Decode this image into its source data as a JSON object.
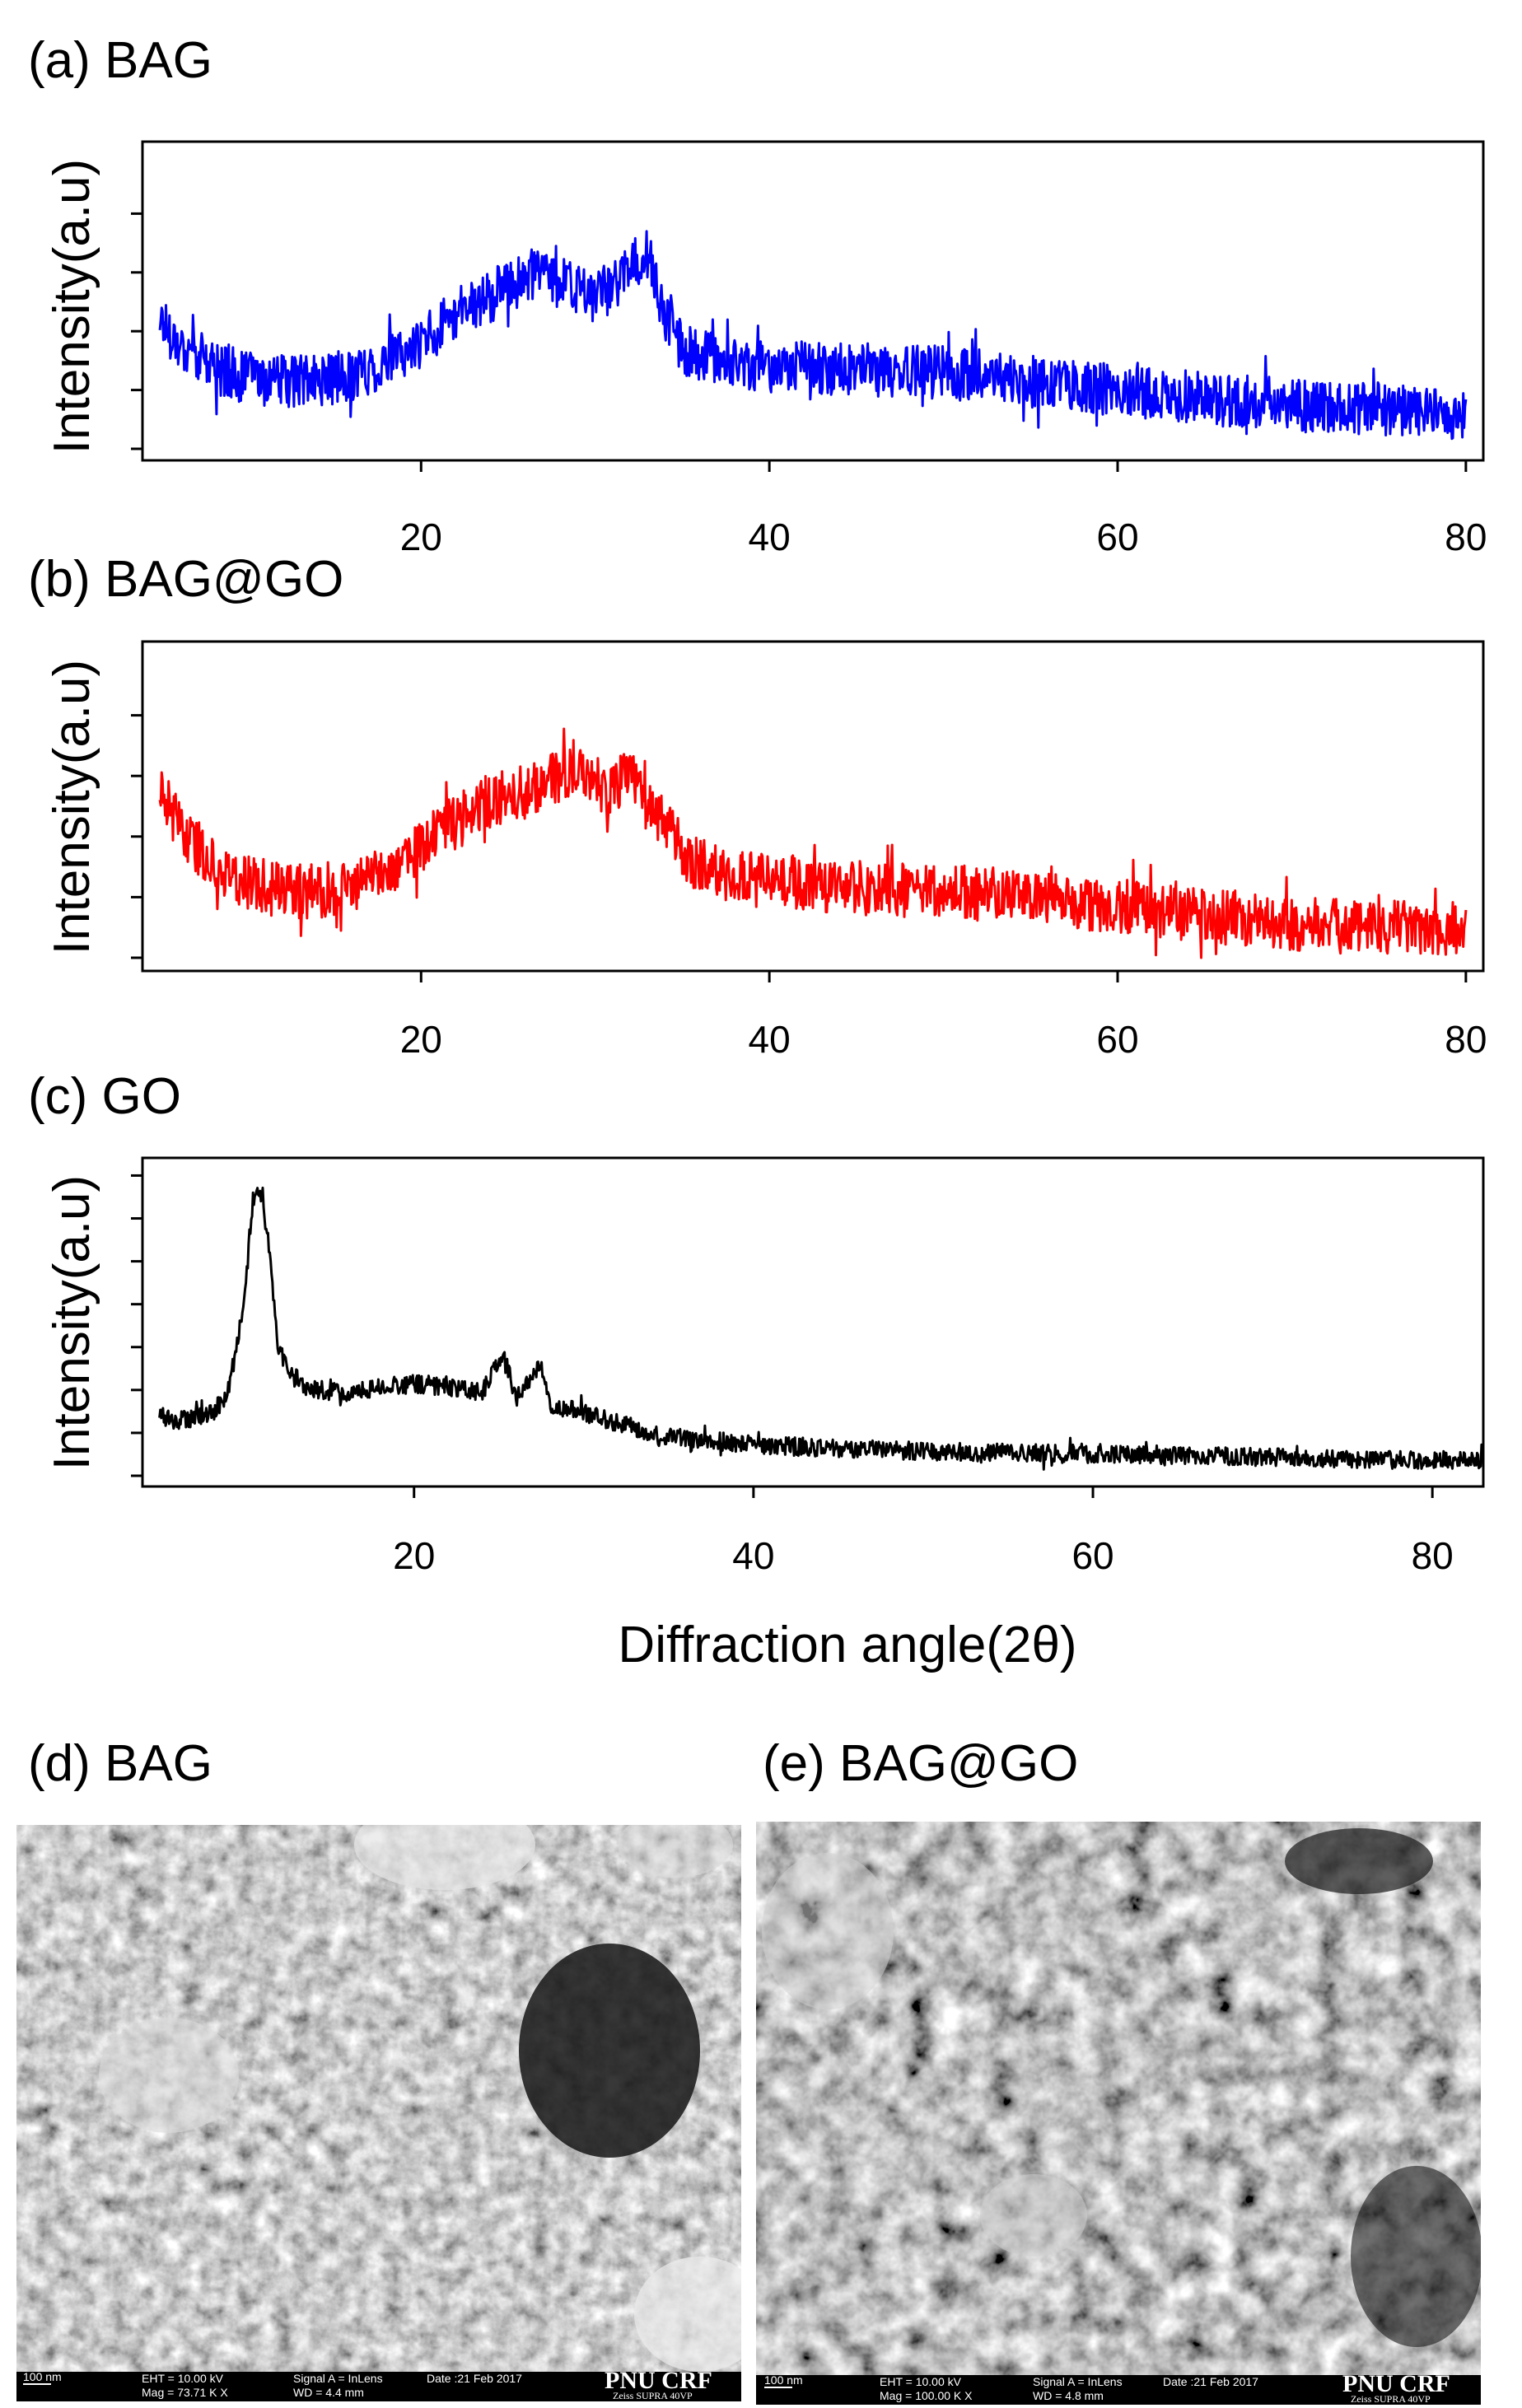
{
  "figure": {
    "xlabel": "Diffraction angle(2θ)",
    "ylabel": "Intensity(a.u)"
  },
  "chart_data": [
    {
      "type": "line",
      "panel": "(a) BAG",
      "title": "(a) BAG",
      "color": "#0000ff",
      "xlabel": "",
      "ylabel": "Intensity(a.u)",
      "xlim": [
        4,
        81
      ],
      "xticks": [
        20,
        40,
        60,
        80
      ],
      "ylim": [
        0,
        100
      ],
      "yticks": [
        0,
        20,
        40,
        60,
        80
      ],
      "noise": 9,
      "series": [
        {
          "name": "BAG",
          "x": [
            5,
            6,
            8,
            10,
            12,
            14,
            16,
            18,
            20,
            22,
            24,
            26,
            27,
            28,
            30,
            31,
            32,
            33,
            34,
            35,
            36,
            38,
            40,
            45,
            50,
            55,
            60,
            65,
            70,
            75,
            80
          ],
          "y": [
            45,
            36,
            28,
            24,
            23,
            23,
            25,
            29,
            36,
            46,
            52,
            58,
            62,
            56,
            52,
            55,
            62,
            66,
            46,
            34,
            31,
            29,
            28,
            27,
            26,
            23,
            20,
            17,
            15,
            13,
            12
          ]
        }
      ]
    },
    {
      "type": "line",
      "panel": "(b) BAG@GO",
      "title": "(b) BAG@GO",
      "color": "#ff0000",
      "xlabel": "",
      "ylabel": "Intensity(a.u)",
      "xlim": [
        4,
        81
      ],
      "xticks": [
        20,
        40,
        60,
        80
      ],
      "ylim": [
        0,
        100
      ],
      "yticks": [
        0,
        20,
        40,
        60,
        80
      ],
      "noise": 9,
      "series": [
        {
          "name": "BAG@GO",
          "x": [
            5,
            6,
            8,
            10,
            12,
            14,
            16,
            18,
            20,
            22,
            24,
            26,
            28,
            29,
            30,
            31,
            32,
            33,
            34,
            35,
            36,
            38,
            40,
            45,
            50,
            55,
            60,
            65,
            70,
            75,
            80
          ],
          "y": [
            56,
            44,
            31,
            25,
            22,
            22,
            24,
            29,
            37,
            45,
            52,
            55,
            60,
            64,
            58,
            56,
            62,
            50,
            44,
            35,
            31,
            27,
            25,
            23,
            22,
            20,
            17,
            14,
            11,
            10,
            10
          ]
        }
      ]
    },
    {
      "type": "line",
      "panel": "(c) GO",
      "title": "(c) GO",
      "color": "#000000",
      "xlabel": "Diffraction angle(2θ)",
      "ylabel": "Intensity(a.u)",
      "xlim": [
        4,
        83
      ],
      "xticks": [
        20,
        40,
        60,
        80
      ],
      "ylim": [
        0,
        100
      ],
      "yticks": [
        0,
        14,
        28,
        42,
        56,
        70,
        84,
        98
      ],
      "noise": 3,
      "series": [
        {
          "name": "GO",
          "x": [
            5,
            6,
            8,
            9,
            10,
            10.5,
            11,
            11.5,
            12,
            13,
            14,
            16,
            18,
            20,
            22,
            24,
            25.3,
            26,
            27.5,
            28,
            30,
            32,
            35,
            40,
            50,
            60,
            70,
            80,
            83
          ],
          "y": [
            20,
            18,
            20,
            26,
            56,
            90,
            92,
            74,
            42,
            30,
            28,
            27,
            29,
            30,
            29,
            27,
            40,
            25,
            36,
            23,
            21,
            17,
            13,
            10,
            8,
            7,
            6,
            5,
            5
          ]
        }
      ]
    }
  ],
  "sem_images": [
    {
      "label": "(d) BAG",
      "scalebar": "100 nm",
      "eht": "EHT = 10.00 kV",
      "mag": "Mag = 73.71 K X",
      "signal": "Signal A = InLens",
      "wd": "WD = 4.4 mm",
      "date": "Date :21 Feb 2017",
      "brand": "PNU CRF",
      "instrument": "Zeiss SUPRA 40VP"
    },
    {
      "label": "(e) BAG@GO",
      "scalebar": "100 nm",
      "eht": "EHT = 10.00 kV",
      "mag": "Mag = 100.00 K X",
      "signal": "Signal A = InLens",
      "wd": "WD = 4.8 mm",
      "date": "Date :21 Feb 2017",
      "brand": "PNU CRF",
      "instrument": "Zeiss SUPRA 40VP"
    }
  ]
}
